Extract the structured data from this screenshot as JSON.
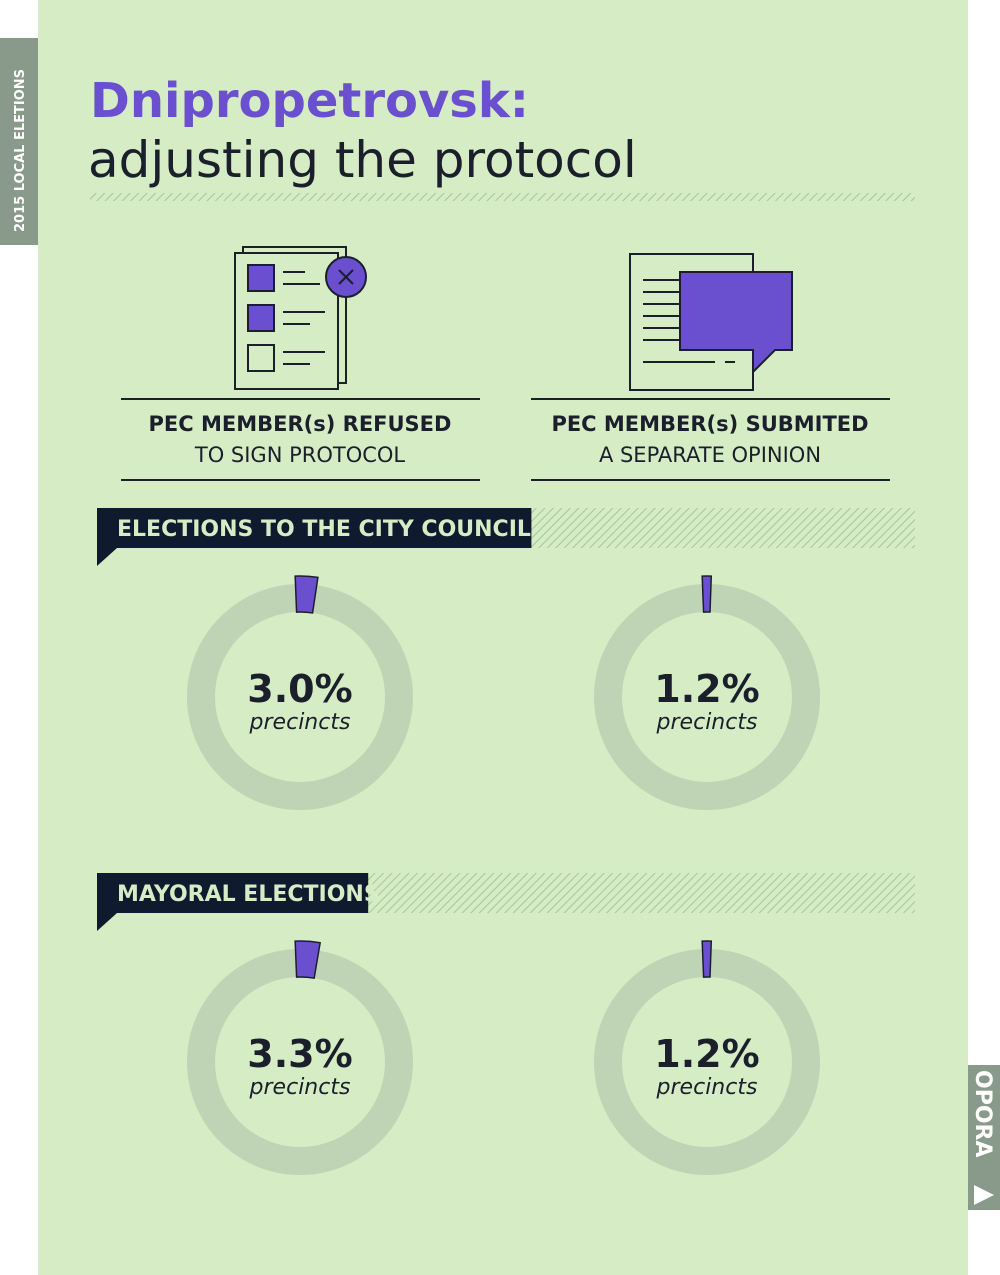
{
  "side_label": "2015 LOCAL ELETIONS",
  "brand": "OPORA",
  "header": {
    "title": "Dnipropetrovsk:",
    "subtitle": "adjusting the protocol"
  },
  "columns": [
    {
      "bold": "PEC MEMBER(s) REFUSED",
      "text": "TO SIGN PROTOCOL"
    },
    {
      "bold": "PEC MEMBER(s) SUBMITED",
      "text": "A SEPARATE OPINION"
    }
  ],
  "chart_data": [
    {
      "type": "donut",
      "title": "ELECTIONS TO THE CITY COUNCIL",
      "values": [
        3.0,
        1.2
      ],
      "value_labels": [
        "3.0%",
        "1.2%"
      ],
      "caption": "precincts",
      "color": "#6a4fcf",
      "track_color": "#bfd4b5"
    },
    {
      "type": "donut",
      "title": "MAYORAL ELECTIONS",
      "values": [
        3.3,
        1.2
      ],
      "value_labels": [
        "3.3%",
        "1.2%"
      ],
      "caption": "precincts",
      "color": "#6a4fcf",
      "track_color": "#bfd4b5"
    }
  ]
}
